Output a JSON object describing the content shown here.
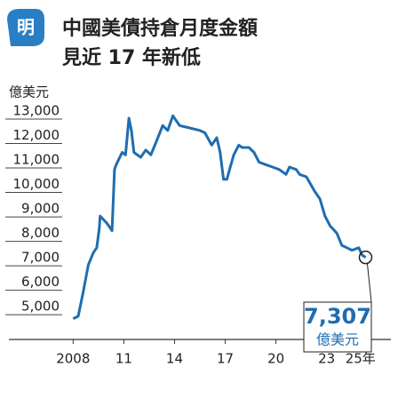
{
  "logo": "明",
  "chart_data": {
    "type": "line",
    "title": "中國美債持倉月度金額",
    "subtitle": "見近 17 年新低",
    "y_label": "億美元",
    "x": [
      2008.0,
      2008.3,
      2008.6,
      2008.9,
      2009.2,
      2009.4,
      2009.55,
      2009.6,
      2010.0,
      2010.3,
      2010.45,
      2010.55,
      2010.9,
      2011.1,
      2011.3,
      2011.45,
      2011.6,
      2012.0,
      2012.3,
      2012.6,
      2012.9,
      2013.3,
      2013.6,
      2013.9,
      2014.3,
      2014.9,
      2015.5,
      2015.8,
      2016.2,
      2016.5,
      2016.7,
      2016.9,
      2017.1,
      2017.3,
      2017.5,
      2017.8,
      2018.0,
      2018.4,
      2018.7,
      2019.0,
      2019.4,
      2019.8,
      2020.2,
      2020.6,
      2020.8,
      2021.2,
      2021.4,
      2021.8,
      2022.3,
      2022.6,
      2022.9,
      2023.2,
      2023.6,
      2023.9,
      2024.2,
      2024.5,
      2024.9,
      2025.1,
      2025.3
    ],
    "series": [
      {
        "name": "中國美債持倉",
        "color": "#1f6db0",
        "values": [
          4800,
          4900,
          5900,
          7000,
          7500,
          7700,
          8500,
          9000,
          8700,
          8400,
          10900,
          11100,
          11600,
          11500,
          13000,
          12500,
          11600,
          11400,
          11700,
          11500,
          12000,
          12700,
          12500,
          13100,
          12700,
          12600,
          12500,
          12400,
          11900,
          12200,
          11600,
          10500,
          10500,
          11000,
          11500,
          11900,
          11800,
          11800,
          11600,
          11200,
          11100,
          11000,
          10900,
          10700,
          11000,
          10900,
          10700,
          10600,
          10000,
          9700,
          9000,
          8600,
          8300,
          7800,
          7700,
          7600,
          7700,
          7400,
          7307
        ]
      }
    ],
    "xlim": [
      2004.2,
      2026.8
    ],
    "xticks": [
      2008,
      {
        "value": 2011,
        "label": "11"
      },
      {
        "value": 2014,
        "label": "14"
      },
      {
        "value": 2017,
        "label": "17"
      },
      {
        "value": 2020,
        "label": "20"
      },
      {
        "value": 2023,
        "label": "23"
      },
      {
        "value": 2025,
        "label": "25年"
      }
    ],
    "ylim": [
      3950,
      14200
    ],
    "yticks": [
      {
        "value": 5000,
        "label": "5,000"
      },
      {
        "value": 6000,
        "label": "6,000"
      },
      {
        "value": 7000,
        "label": "7,000"
      },
      {
        "value": 8000,
        "label": "8,000"
      },
      {
        "value": 9000,
        "label": "9,000"
      },
      {
        "value": 10000,
        "label": "10,000"
      },
      {
        "value": 11000,
        "label": "11,000"
      },
      {
        "value": 12000,
        "label": "12,000"
      },
      {
        "value": 13000,
        "label": "13,000"
      }
    ],
    "annotation": {
      "value": 7307,
      "label": "7,307",
      "unit": "億美元"
    }
  }
}
